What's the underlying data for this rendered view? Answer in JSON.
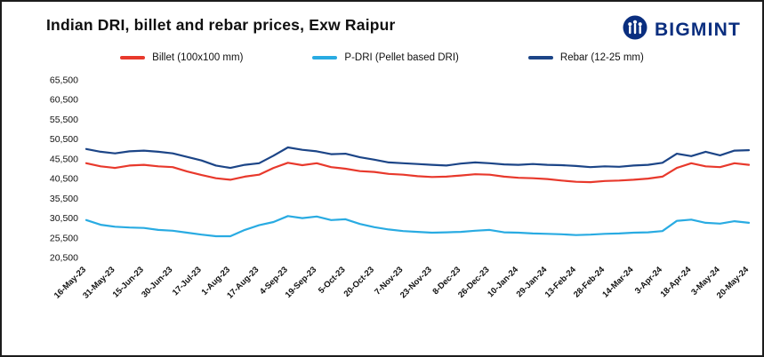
{
  "header": {
    "title": "Indian DRI, billet and rebar prices, Exw Raipur",
    "brand": "BIGMINT",
    "brand_color": "#0a2e7f"
  },
  "legend": [
    {
      "label": "Billet (100x100 mm)",
      "color": "#e8392c"
    },
    {
      "label": "P-DRI (Pellet based DRI)",
      "color": "#29abe2"
    },
    {
      "label": "Rebar (12-25 mm)",
      "color": "#1c4587"
    }
  ],
  "chart_data": {
    "type": "line",
    "title": "Indian DRI, billet and rebar prices, Exw Raipur",
    "xlabel": "",
    "ylabel": "",
    "grid": false,
    "legend_position": "top",
    "ylim": [
      20500,
      65500
    ],
    "y_ticks": [
      20500,
      25500,
      30500,
      35500,
      40500,
      45500,
      50500,
      55500,
      60500,
      65500
    ],
    "x_tick_labels": [
      "16-May-23",
      "31-May-23",
      "15-Jun-23",
      "30-Jun-23",
      "17-Jul-23",
      "1-Aug-23",
      "17-Aug-23",
      "4-Sep-23",
      "19-Sep-23",
      "5-Oct-23",
      "20-Oct-23",
      "7-Nov-23",
      "23-Nov-23",
      "8-Dec-23",
      "26-Dec-23",
      "10-Jan-24",
      "29-Jan-24",
      "13-Feb-24",
      "28-Feb-24",
      "14-Mar-24",
      "3-Apr-24",
      "18-Apr-24",
      "3-May-24",
      "20-May-24"
    ],
    "x_tick_every_n_points": 2,
    "series": [
      {
        "name": "Billet (100x100 mm)",
        "color": "#e8392c",
        "values": [
          44400,
          43600,
          43200,
          43800,
          44000,
          43600,
          43400,
          42300,
          41400,
          40600,
          40200,
          41000,
          41500,
          43200,
          44500,
          43900,
          44400,
          43400,
          43000,
          42400,
          42200,
          41700,
          41500,
          41100,
          40900,
          41000,
          41300,
          41600,
          41500,
          41000,
          40700,
          40600,
          40400,
          40000,
          39700,
          39600,
          39900,
          40000,
          40200,
          40500,
          41000,
          43200,
          44400,
          43600,
          43400,
          44400,
          44000
        ]
      },
      {
        "name": "P-DRI (Pellet based DRI)",
        "color": "#29abe2",
        "values": [
          30000,
          28800,
          28300,
          28100,
          28000,
          27500,
          27300,
          26800,
          26300,
          25900,
          25900,
          27500,
          28700,
          29500,
          31000,
          30500,
          30900,
          30000,
          30200,
          29000,
          28200,
          27600,
          27200,
          27000,
          26800,
          26900,
          27000,
          27300,
          27500,
          26900,
          26800,
          26600,
          26500,
          26400,
          26200,
          26300,
          26500,
          26600,
          26800,
          26900,
          27200,
          29800,
          30100,
          29300,
          29100,
          29700,
          29300
        ]
      },
      {
        "name": "Rebar (12-25 mm)",
        "color": "#1c4587",
        "values": [
          48000,
          47300,
          46900,
          47400,
          47600,
          47300,
          46900,
          46000,
          45100,
          43800,
          43200,
          44000,
          44400,
          46300,
          48400,
          47800,
          47400,
          46700,
          46800,
          45900,
          45300,
          44600,
          44400,
          44200,
          44000,
          43800,
          44300,
          44600,
          44400,
          44100,
          44000,
          44200,
          44000,
          43900,
          43700,
          43400,
          43600,
          43500,
          43800,
          44000,
          44500,
          46800,
          46200,
          47300,
          46400,
          47600,
          47700
        ]
      }
    ]
  }
}
